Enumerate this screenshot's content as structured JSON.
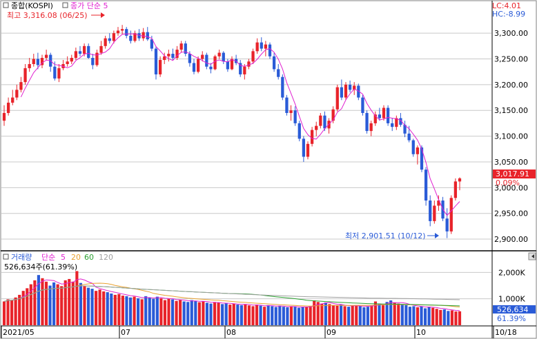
{
  "price_panel": {
    "title": "종합(KOSPI)",
    "ma_label": "종가 단순 5",
    "lc_label": "LC:4.01",
    "hc_label": "HC:-8.99",
    "high_marker": "최고 3,316.08 (06/25)",
    "low_marker": "최저 2,901.51 (10/12)",
    "last_price_badge": "3,017.91",
    "last_change_badge": "0.09%"
  },
  "volume_panel": {
    "title": "거래량",
    "ma_label": "단순",
    "ma_periods": [
      "5",
      "20",
      "60",
      "120"
    ],
    "info": "526,634주(61.39%)",
    "last_volume_badge": "526,634",
    "last_pct_badge": "61.39%"
  },
  "colors": {
    "up": "#e8232a",
    "down": "#2a5bd7",
    "ma5": "#e020d0",
    "ma20": "#e8a030",
    "ma60": "#2aa030",
    "ma120": "#a0a0a0",
    "grid": "#c8c8c8",
    "badge_up": "#e8232a",
    "badge_down": "#2a5bd7"
  },
  "chart_data": [
    {
      "type": "candlestick",
      "title": "종합(KOSPI)",
      "x_ticks": [
        "2021/05",
        "07",
        "08",
        "09",
        "10",
        "10/18"
      ],
      "y_ticks": [
        3300,
        3250,
        3200,
        3150,
        3100,
        3050,
        3000,
        2950,
        2900
      ],
      "y_tick_labels": [
        "3,300.00",
        "3,250.00",
        "3,200.00",
        "3,150.00",
        "3,100.00",
        "3,050.00",
        "3,000.00",
        "2,950.00",
        "2,900.00"
      ],
      "ylim": [
        2880,
        3335
      ],
      "grid": true,
      "ohlc": [
        [
          3130,
          3160,
          3120,
          3145
        ],
        [
          3145,
          3175,
          3140,
          3165
        ],
        [
          3165,
          3190,
          3160,
          3175
        ],
        [
          3175,
          3200,
          3170,
          3190
        ],
        [
          3190,
          3215,
          3185,
          3205
        ],
        [
          3205,
          3240,
          3200,
          3232
        ],
        [
          3232,
          3252,
          3225,
          3240
        ],
        [
          3240,
          3260,
          3235,
          3250
        ],
        [
          3250,
          3262,
          3230,
          3238
        ],
        [
          3238,
          3258,
          3232,
          3252
        ],
        [
          3252,
          3268,
          3248,
          3258
        ],
        [
          3258,
          3262,
          3225,
          3235
        ],
        [
          3235,
          3245,
          3208,
          3212
        ],
        [
          3212,
          3240,
          3205,
          3232
        ],
        [
          3232,
          3248,
          3228,
          3240
        ],
        [
          3240,
          3255,
          3235,
          3245
        ],
        [
          3245,
          3258,
          3240,
          3252
        ],
        [
          3252,
          3272,
          3248,
          3265
        ],
        [
          3265,
          3275,
          3255,
          3260
        ],
        [
          3260,
          3280,
          3255,
          3275
        ],
        [
          3275,
          3280,
          3250,
          3252
        ],
        [
          3252,
          3260,
          3230,
          3238
        ],
        [
          3238,
          3268,
          3235,
          3262
        ],
        [
          3262,
          3285,
          3258,
          3275
        ],
        [
          3275,
          3295,
          3270,
          3290
        ],
        [
          3290,
          3300,
          3280,
          3285
        ],
        [
          3285,
          3305,
          3280,
          3300
        ],
        [
          3300,
          3312,
          3295,
          3305
        ],
        [
          3305,
          3316,
          3298,
          3308
        ],
        [
          3308,
          3312,
          3290,
          3295
        ],
        [
          3295,
          3305,
          3280,
          3285
        ],
        [
          3285,
          3305,
          3282,
          3300
        ],
        [
          3300,
          3308,
          3285,
          3290
        ],
        [
          3290,
          3310,
          3285,
          3302
        ],
        [
          3302,
          3312,
          3285,
          3288
        ],
        [
          3288,
          3295,
          3265,
          3270
        ],
        [
          3270,
          3275,
          3210,
          3220
        ],
        [
          3220,
          3255,
          3215,
          3248
        ],
        [
          3248,
          3262,
          3240,
          3255
        ],
        [
          3255,
          3268,
          3245,
          3260
        ],
        [
          3260,
          3270,
          3248,
          3252
        ],
        [
          3252,
          3275,
          3248,
          3268
        ],
        [
          3268,
          3285,
          3262,
          3280
        ],
        [
          3280,
          3285,
          3255,
          3260
        ],
        [
          3260,
          3265,
          3235,
          3242
        ],
        [
          3242,
          3250,
          3220,
          3225
        ],
        [
          3225,
          3255,
          3222,
          3250
        ],
        [
          3250,
          3265,
          3245,
          3258
        ],
        [
          3258,
          3262,
          3230,
          3235
        ],
        [
          3235,
          3242,
          3222,
          3230
        ],
        [
          3230,
          3258,
          3228,
          3255
        ],
        [
          3255,
          3268,
          3250,
          3262
        ],
        [
          3262,
          3265,
          3240,
          3245
        ],
        [
          3245,
          3250,
          3225,
          3230
        ],
        [
          3230,
          3255,
          3228,
          3250
        ],
        [
          3250,
          3258,
          3238,
          3242
        ],
        [
          3242,
          3248,
          3215,
          3220
        ],
        [
          3220,
          3240,
          3210,
          3235
        ],
        [
          3235,
          3250,
          3230,
          3245
        ],
        [
          3245,
          3270,
          3240,
          3265
        ],
        [
          3265,
          3290,
          3260,
          3282
        ],
        [
          3282,
          3292,
          3265,
          3270
        ],
        [
          3270,
          3285,
          3255,
          3278
        ],
        [
          3278,
          3282,
          3250,
          3255
        ],
        [
          3255,
          3262,
          3225,
          3230
        ],
        [
          3230,
          3240,
          3210,
          3215
        ],
        [
          3215,
          3220,
          3170,
          3175
        ],
        [
          3175,
          3180,
          3140,
          3145
        ],
        [
          3145,
          3160,
          3130,
          3150
        ],
        [
          3150,
          3158,
          3120,
          3125
        ],
        [
          3125,
          3130,
          3090,
          3095
        ],
        [
          3095,
          3100,
          3050,
          3060
        ],
        [
          3060,
          3090,
          3055,
          3085
        ],
        [
          3085,
          3118,
          3080,
          3112
        ],
        [
          3112,
          3128,
          3100,
          3120
        ],
        [
          3120,
          3145,
          3115,
          3140
        ],
        [
          3140,
          3148,
          3110,
          3115
        ],
        [
          3115,
          3135,
          3105,
          3130
        ],
        [
          3130,
          3158,
          3125,
          3152
        ],
        [
          3152,
          3200,
          3148,
          3195
        ],
        [
          3195,
          3210,
          3170,
          3175
        ],
        [
          3175,
          3205,
          3170,
          3200
        ],
        [
          3200,
          3208,
          3185,
          3190
        ],
        [
          3190,
          3205,
          3180,
          3198
        ],
        [
          3198,
          3202,
          3170,
          3175
        ],
        [
          3175,
          3180,
          3140,
          3145
        ],
        [
          3145,
          3150,
          3105,
          3110
        ],
        [
          3110,
          3130,
          3100,
          3125
        ],
        [
          3125,
          3148,
          3120,
          3142
        ],
        [
          3142,
          3155,
          3130,
          3135
        ],
        [
          3135,
          3160,
          3130,
          3155
        ],
        [
          3155,
          3160,
          3120,
          3125
        ],
        [
          3125,
          3135,
          3110,
          3118
        ],
        [
          3118,
          3140,
          3112,
          3135
        ],
        [
          3135,
          3145,
          3118,
          3122
        ],
        [
          3122,
          3130,
          3098,
          3105
        ],
        [
          3105,
          3120,
          3088,
          3092
        ],
        [
          3092,
          3095,
          3060,
          3065
        ],
        [
          3065,
          3082,
          3045,
          3078
        ],
        [
          3078,
          3082,
          3030,
          3035
        ],
        [
          3035,
          3040,
          2965,
          2975
        ],
        [
          2975,
          2985,
          2925,
          2935
        ],
        [
          2935,
          2975,
          2930,
          2965
        ],
        [
          2965,
          2985,
          2955,
          2975
        ],
        [
          2975,
          2982,
          2935,
          2940
        ],
        [
          2940,
          2960,
          2902,
          2915
        ],
        [
          2915,
          2985,
          2910,
          2980
        ],
        [
          2980,
          3018,
          2975,
          3012
        ],
        [
          3012,
          3020,
          2995,
          3018
        ]
      ],
      "ma5_color": "#e020d0",
      "high": {
        "label": "최고 3,316.08 (06/25)",
        "value": 3316.08
      },
      "low": {
        "label": "최저 2,901.51 (10/12)",
        "value": 2901.51
      },
      "last": 3017.91
    },
    {
      "type": "bar",
      "title": "거래량",
      "y_ticks": [
        2000,
        1000
      ],
      "y_tick_labels": [
        "2,000K",
        "1,000K"
      ],
      "ylim": [
        0,
        2400
      ],
      "volume_k": [
        900,
        980,
        950,
        1050,
        1150,
        1300,
        1400,
        1550,
        1700,
        1900,
        1780,
        1650,
        1500,
        1620,
        1550,
        1480,
        1700,
        1750,
        1650,
        2050,
        1600,
        1500,
        1420,
        1380,
        1300,
        1350,
        1280,
        1250,
        1200,
        1150,
        1180,
        1120,
        1100,
        1050,
        1080,
        1020,
        980,
        1100,
        1050,
        1000,
        1080,
        1020,
        950,
        1000,
        980,
        920,
        960,
        900,
        880,
        950,
        920,
        870,
        900,
        850,
        820,
        880,
        850,
        800,
        830,
        780,
        820,
        780,
        760,
        800,
        750,
        720,
        780,
        740,
        700,
        760,
        720,
        690,
        740,
        700,
        680,
        720,
        700,
        660,
        700,
        680,
        720,
        940,
        880,
        820,
        860,
        800,
        760,
        740,
        780,
        720,
        700,
        740,
        760,
        720,
        680,
        700,
        740,
        900,
        820,
        760,
        880,
        940,
        860,
        820,
        780,
        760,
        700,
        720,
        680,
        720,
        640,
        700,
        660,
        620,
        580,
        600,
        540,
        560,
        520,
        527
      ],
      "ma5_color": "#e020d0",
      "ma20_color": "#e8a030",
      "ma60_color": "#2aa030",
      "ma120_color": "#a0a0a0",
      "last_volume": 526634,
      "last_pct": "61.39%"
    }
  ]
}
